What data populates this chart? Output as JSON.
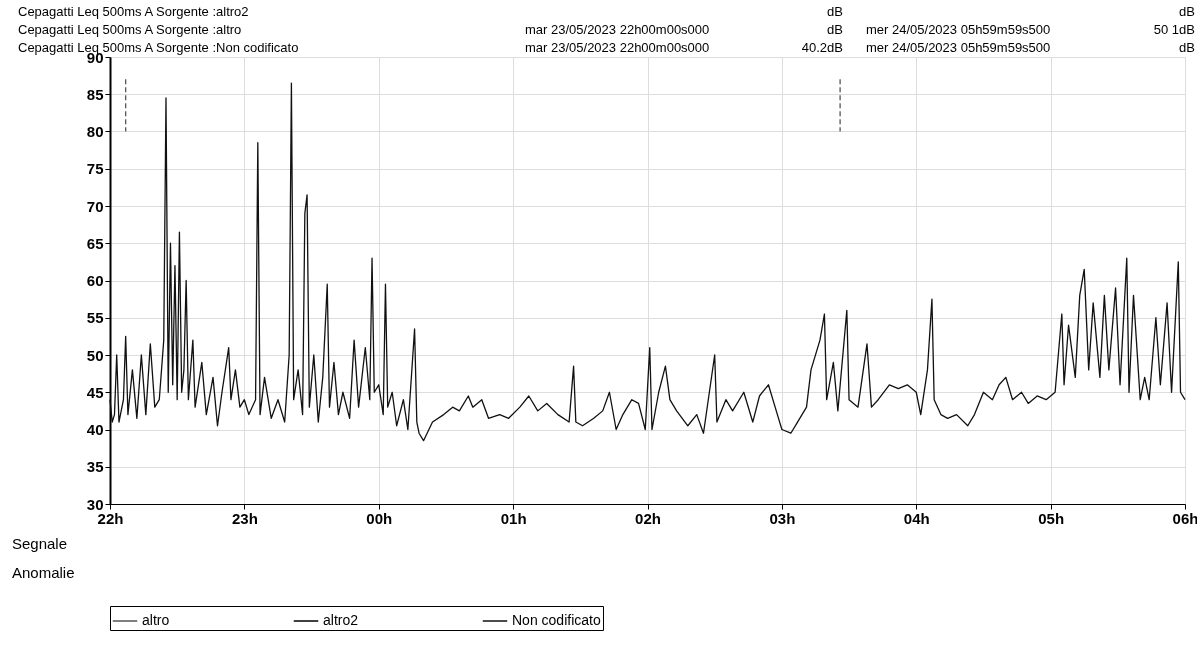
{
  "chart_data": {
    "type": "line",
    "xlim": [
      "2023-05-23T22:00",
      "2023-05-24T06:00"
    ],
    "ylim": [
      30,
      90
    ],
    "xticks": [
      {
        "value": "2023-05-23T22:00",
        "label": "22h"
      },
      {
        "value": "2023-05-23T23:00",
        "label": "23h"
      },
      {
        "value": "2023-05-24T00:00",
        "label": "00h"
      },
      {
        "value": "2023-05-24T01:00",
        "label": "01h"
      },
      {
        "value": "2023-05-24T02:00",
        "label": "02h"
      },
      {
        "value": "2023-05-24T03:00",
        "label": "03h"
      },
      {
        "value": "2023-05-24T04:00",
        "label": "04h"
      },
      {
        "value": "2023-05-24T05:00",
        "label": "05h"
      },
      {
        "value": "2023-05-24T06:00",
        "label": "06h"
      }
    ],
    "yticks": [
      30,
      35,
      40,
      45,
      50,
      55,
      60,
      65,
      70,
      75,
      80,
      85,
      90
    ],
    "grid": true,
    "legend": "bottom",
    "marker": "none",
    "annotations": [
      "Cepagatti   Leq 500ms  A  Sorgente :altro2",
      "dB",
      "dB",
      "Cepagatti   Leq 500ms  A  Sorgente :altro",
      "mar 23/05/2023 22h00m00s000",
      "dB",
      "mer 24/05/2023 05h59m59s500",
      "50 1dB",
      "Cepagatti   Leq 500ms  A  Sorgente :Non codificato",
      "mar 23/05/2023 22h00m00s000",
      "40.2dB",
      "mer 24/05/2023 05h59m59s500",
      "dB",
      "Segnale",
      "Anomalie"
    ],
    "series": [
      {
        "name": "altro",
        "color": "#555555",
        "line_style": "dashed",
        "x": [
          "2023-05-23T22:07",
          "2023-05-23T22:07",
          "2023-05-24T00:30",
          "2023-05-24T03:26",
          "2023-05-24T03:26"
        ],
        "values": [
          87,
          80,
          null,
          87,
          80
        ]
      },
      {
        "name": "altro2",
        "color": "#000000"
      },
      {
        "name": "Non codificato",
        "color": "#111111",
        "line_style": "solid",
        "x": [
          "2023-05-23T22:00",
          "2023-05-23T22:01",
          "2023-05-23T22:02",
          "2023-05-23T22:03",
          "2023-05-23T22:04",
          "2023-05-23T22:06",
          "2023-05-23T22:07",
          "2023-05-23T22:08",
          "2023-05-23T22:10",
          "2023-05-23T22:12",
          "2023-05-23T22:14",
          "2023-05-23T22:16",
          "2023-05-23T22:18",
          "2023-05-23T22:20",
          "2023-05-23T22:22",
          "2023-05-23T22:24",
          "2023-05-23T22:25",
          "2023-05-23T22:26",
          "2023-05-23T22:27",
          "2023-05-23T22:28",
          "2023-05-23T22:29",
          "2023-05-23T22:30",
          "2023-05-23T22:31",
          "2023-05-23T22:32",
          "2023-05-23T22:33",
          "2023-05-23T22:34",
          "2023-05-23T22:35",
          "2023-05-23T22:37",
          "2023-05-23T22:38",
          "2023-05-23T22:41",
          "2023-05-23T22:43",
          "2023-05-23T22:46",
          "2023-05-23T22:48",
          "2023-05-23T22:50",
          "2023-05-23T22:53",
          "2023-05-23T22:54",
          "2023-05-23T22:56",
          "2023-05-23T22:58",
          "2023-05-23T23:00",
          "2023-05-23T23:02",
          "2023-05-23T23:05",
          "2023-05-23T23:06",
          "2023-05-23T23:07",
          "2023-05-23T23:09",
          "2023-05-23T23:12",
          "2023-05-23T23:15",
          "2023-05-23T23:18",
          "2023-05-23T23:20",
          "2023-05-23T23:21",
          "2023-05-23T23:22",
          "2023-05-23T23:24",
          "2023-05-23T23:26",
          "2023-05-23T23:27",
          "2023-05-23T23:28",
          "2023-05-23T23:29",
          "2023-05-23T23:31",
          "2023-05-23T23:33",
          "2023-05-23T23:35",
          "2023-05-23T23:37",
          "2023-05-23T23:38",
          "2023-05-23T23:40",
          "2023-05-23T23:42",
          "2023-05-23T23:44",
          "2023-05-23T23:47",
          "2023-05-23T23:49",
          "2023-05-23T23:51",
          "2023-05-23T23:54",
          "2023-05-23T23:56",
          "2023-05-23T23:57",
          "2023-05-23T23:58",
          "2023-05-24T00:00",
          "2023-05-24T00:02",
          "2023-05-24T00:03",
          "2023-05-24T00:04",
          "2023-05-24T00:06",
          "2023-05-24T00:08",
          "2023-05-24T00:11",
          "2023-05-24T00:13",
          "2023-05-24T00:16",
          "2023-05-24T00:17",
          "2023-05-24T00:18",
          "2023-05-24T00:20",
          "2023-05-24T00:24",
          "2023-05-24T00:29",
          "2023-05-24T00:33",
          "2023-05-24T00:36",
          "2023-05-24T00:40",
          "2023-05-24T00:42",
          "2023-05-24T00:46",
          "2023-05-24T00:49",
          "2023-05-24T00:54",
          "2023-05-24T00:58",
          "2023-05-24T01:03",
          "2023-05-24T01:07",
          "2023-05-24T01:11",
          "2023-05-24T01:15",
          "2023-05-24T01:20",
          "2023-05-24T01:25",
          "2023-05-24T01:27",
          "2023-05-24T01:28",
          "2023-05-24T01:31",
          "2023-05-24T01:36",
          "2023-05-24T01:40",
          "2023-05-24T01:43",
          "2023-05-24T01:46",
          "2023-05-24T01:49",
          "2023-05-24T01:53",
          "2023-05-24T01:56",
          "2023-05-24T01:59",
          "2023-05-24T02:01",
          "2023-05-24T02:02",
          "2023-05-24T02:05",
          "2023-05-24T02:08",
          "2023-05-24T02:10",
          "2023-05-24T02:13",
          "2023-05-24T02:18",
          "2023-05-24T02:22",
          "2023-05-24T02:25",
          "2023-05-24T02:30",
          "2023-05-24T02:31",
          "2023-05-24T02:35",
          "2023-05-24T02:38",
          "2023-05-24T02:43",
          "2023-05-24T02:47",
          "2023-05-24T02:50",
          "2023-05-24T02:54",
          "2023-05-24T02:58",
          "2023-05-24T03:00",
          "2023-05-24T03:04",
          "2023-05-24T03:07",
          "2023-05-24T03:11",
          "2023-05-24T03:13",
          "2023-05-24T03:17",
          "2023-05-24T03:19",
          "2023-05-24T03:20",
          "2023-05-24T03:23",
          "2023-05-24T03:25",
          "2023-05-24T03:29",
          "2023-05-24T03:30",
          "2023-05-24T03:34",
          "2023-05-24T03:38",
          "2023-05-24T03:40",
          "2023-05-24T03:43",
          "2023-05-24T03:48",
          "2023-05-24T03:52",
          "2023-05-24T03:56",
          "2023-05-24T04:00",
          "2023-05-24T04:02",
          "2023-05-24T04:05",
          "2023-05-24T04:07",
          "2023-05-24T04:08",
          "2023-05-24T04:11",
          "2023-05-24T04:14",
          "2023-05-24T04:18",
          "2023-05-24T04:23",
          "2023-05-24T04:26",
          "2023-05-24T04:30",
          "2023-05-24T04:34",
          "2023-05-24T04:37",
          "2023-05-24T04:40",
          "2023-05-24T04:43",
          "2023-05-24T04:47",
          "2023-05-24T04:50",
          "2023-05-24T04:54",
          "2023-05-24T04:58",
          "2023-05-24T05:02",
          "2023-05-24T05:05",
          "2023-05-24T05:06",
          "2023-05-24T05:08",
          "2023-05-24T05:11",
          "2023-05-24T05:13",
          "2023-05-24T05:15",
          "2023-05-24T05:17",
          "2023-05-24T05:19",
          "2023-05-24T05:22",
          "2023-05-24T05:24",
          "2023-05-24T05:26",
          "2023-05-24T05:29",
          "2023-05-24T05:31",
          "2023-05-24T05:34",
          "2023-05-24T05:35",
          "2023-05-24T05:37",
          "2023-05-24T05:40",
          "2023-05-24T05:42",
          "2023-05-24T05:44",
          "2023-05-24T05:47",
          "2023-05-24T05:49",
          "2023-05-24T05:52",
          "2023-05-24T05:54",
          "2023-05-24T05:57",
          "2023-05-24T05:58",
          "2023-05-24T06:00"
        ],
        "values": [
          44,
          41,
          42,
          50,
          41,
          44,
          52.5,
          42,
          48,
          41.5,
          50,
          42,
          51.5,
          43,
          44,
          52,
          84.5,
          45,
          65,
          46,
          62,
          44,
          66.5,
          45,
          48,
          60,
          44,
          52,
          43,
          49,
          42,
          47,
          40.5,
          45,
          51,
          44,
          48,
          43,
          44,
          42,
          44,
          78.5,
          42,
          47,
          41.5,
          44,
          41,
          50,
          86.5,
          44,
          48,
          42,
          69,
          71.5,
          43,
          50,
          41,
          47,
          59.5,
          43,
          49,
          42,
          45,
          41.5,
          52,
          43,
          51,
          44,
          63,
          45,
          46,
          42,
          59.5,
          43,
          45,
          40.5,
          44,
          40,
          53.5,
          41,
          39.5,
          38.5,
          41,
          42,
          43,
          42.5,
          44.5,
          43,
          44,
          41.5,
          42,
          41.5,
          43,
          44.5,
          42.5,
          43.5,
          42,
          41,
          48.5,
          41,
          40.5,
          41.5,
          42.5,
          45,
          40,
          42,
          44,
          43.5,
          40,
          51,
          40,
          45,
          48.5,
          44,
          42.5,
          40.5,
          42,
          39.5,
          50,
          41,
          44,
          42.5,
          45,
          41,
          44.5,
          46,
          42,
          40,
          39.5,
          41,
          43,
          48,
          52,
          55.5,
          44,
          49,
          42.5,
          56,
          44,
          43,
          51.5,
          43,
          44,
          46,
          45.5,
          46,
          45,
          42,
          48,
          57.5,
          44,
          42,
          41.5,
          42,
          40.5,
          42,
          45,
          44,
          46,
          47,
          44,
          45,
          43.5,
          44.5,
          44,
          45,
          55.5,
          46,
          54,
          47,
          58,
          61.5,
          48,
          57,
          47,
          58,
          48,
          59,
          46,
          63,
          45,
          58,
          44,
          47,
          44,
          55,
          46,
          57,
          45,
          62.5,
          45,
          44
        ]
      }
    ]
  }
}
